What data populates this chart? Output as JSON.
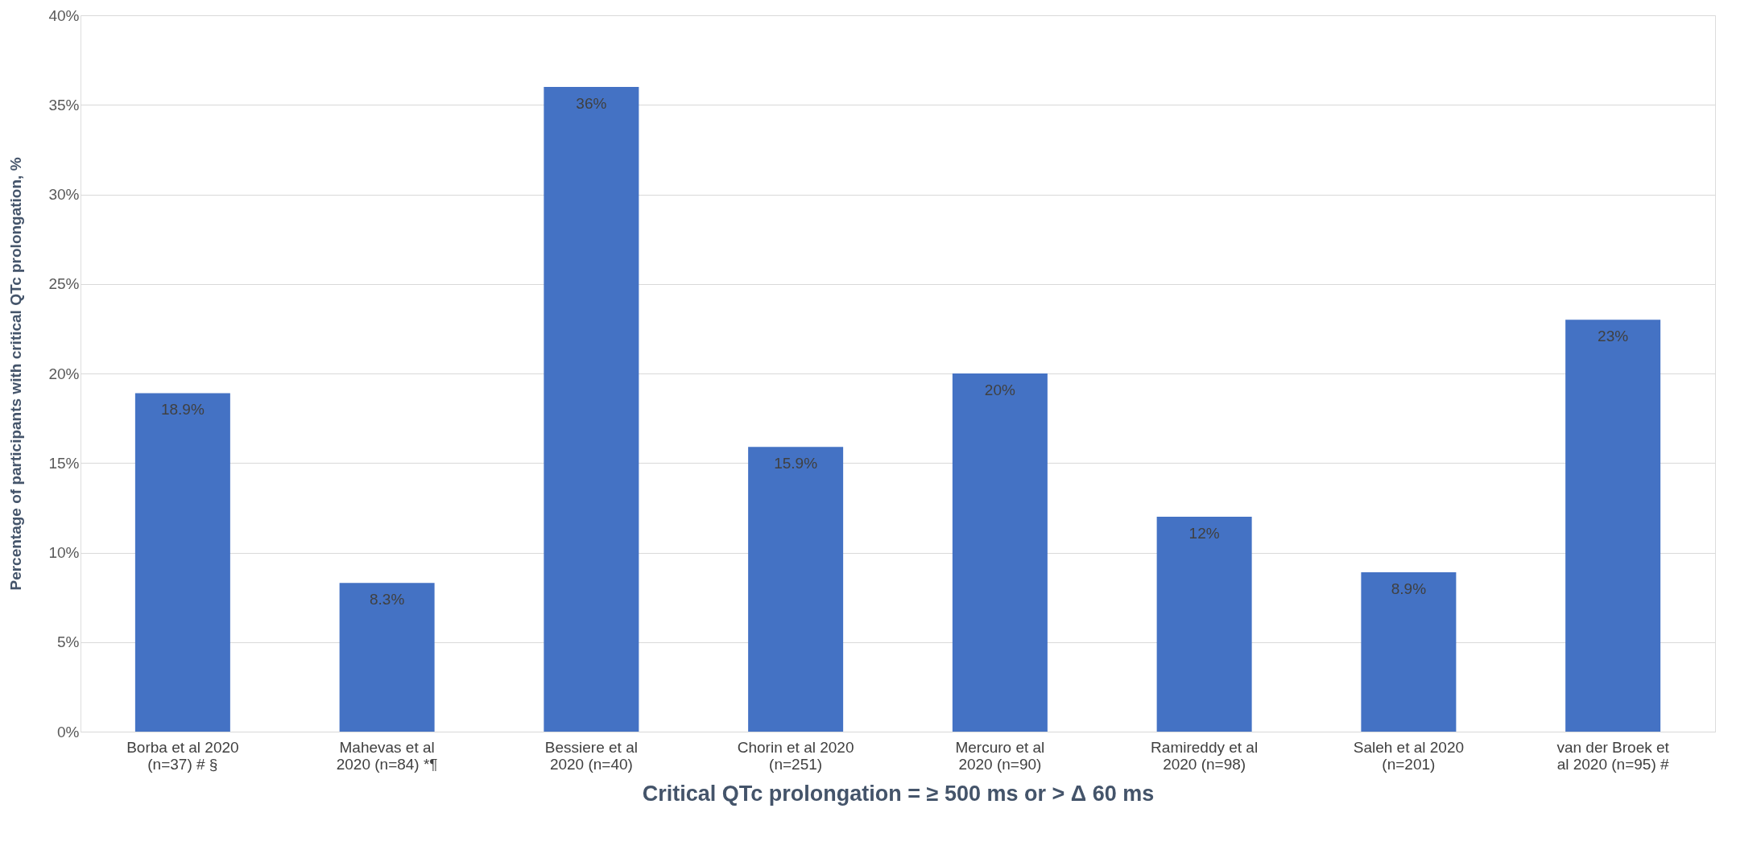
{
  "chart_data": {
    "type": "bar",
    "xlabel": "Critical QTc prolongation = ≥ 500 ms or > Δ 60 ms",
    "ylabel": "Percentage of participants with critical QTc prolongation, %",
    "categories": [
      "Borba et al 2020\n(n=37) # §",
      "Mahevas et al\n2020 (n=84) *¶",
      "Bessiere et al\n2020 (n=40)",
      "Chorin et al 2020\n(n=251)",
      "Mercuro et al\n2020 (n=90)",
      "Ramireddy et al\n2020 (n=98)",
      "Saleh et al 2020\n(n=201)",
      "van der Broek et\nal 2020 (n=95)  #"
    ],
    "values": [
      18.9,
      8.3,
      36,
      15.9,
      20,
      12,
      8.9,
      23
    ],
    "value_labels": [
      "18.9%",
      "8.3%",
      "36%",
      "15.9%",
      "20%",
      "12%",
      "8.9%",
      "23%"
    ],
    "color": "#4472c4",
    "ylim": [
      0,
      40
    ],
    "yticks": [
      {
        "value": 0,
        "label": "0%"
      },
      {
        "value": 5,
        "label": "5%"
      },
      {
        "value": 10,
        "label": "10%"
      },
      {
        "value": 15,
        "label": "15%"
      },
      {
        "value": 20,
        "label": "20%"
      },
      {
        "value": 25,
        "label": "25%"
      },
      {
        "value": 30,
        "label": "30%"
      },
      {
        "value": 35,
        "label": "35%"
      },
      {
        "value": 40,
        "label": "40%"
      }
    ],
    "grid": "y"
  }
}
